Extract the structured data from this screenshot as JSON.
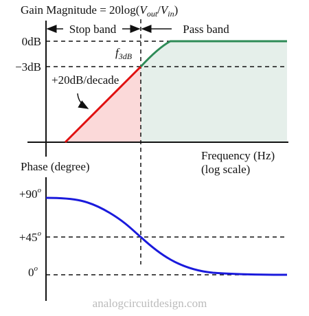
{
  "gain": {
    "title": [
      "Gain Magnitude = 20log(",
      "V",
      "out",
      "/",
      "V",
      "in",
      ")"
    ],
    "stop_band": "Stop band",
    "pass_band": "Pass band",
    "y_labels": [
      "0dB",
      "−3dB"
    ],
    "cutoff": [
      "f",
      "3dB"
    ],
    "slope": "+20dB/decade",
    "x_label": [
      "Frequency (Hz)",
      "(log scale)"
    ]
  },
  "phase": {
    "title": "Phase (degree)",
    "y_labels": [
      [
        "+90",
        "o"
      ],
      [
        "+45",
        "o"
      ],
      [
        "0",
        "o"
      ]
    ]
  },
  "footer": "analogcircuitdesign.com"
}
